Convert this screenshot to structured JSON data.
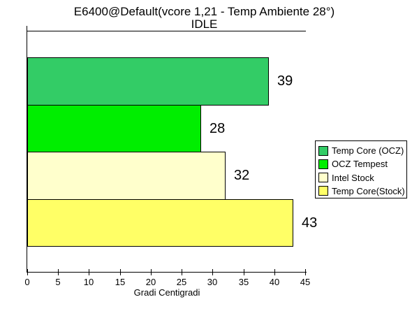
{
  "chart_data": {
    "type": "bar",
    "orientation": "horizontal",
    "title": "E6400@Default(vcore 1,21 - Temp Ambiente 28°)",
    "subtitle": "IDLE",
    "xlabel": "Gradi Centigradi",
    "categories": [
      "Temp Core (OCZ)",
      "OCZ Tempest",
      "Intel Stock",
      "Temp Core(Stock)"
    ],
    "values": [
      39,
      28,
      32,
      43
    ],
    "colors": [
      "#33CC66",
      "#00EE00",
      "#FFFFCC",
      "#FFFF66"
    ],
    "xlim": [
      0,
      45
    ],
    "xticks": [
      0,
      5,
      10,
      15,
      20,
      25,
      30,
      35,
      40,
      45
    ],
    "grid": false,
    "legend_position": "right",
    "bar_border_color": "#000000",
    "axis_color": "#000000",
    "background_color": "#FFFFFF",
    "text_color": "#000000"
  }
}
